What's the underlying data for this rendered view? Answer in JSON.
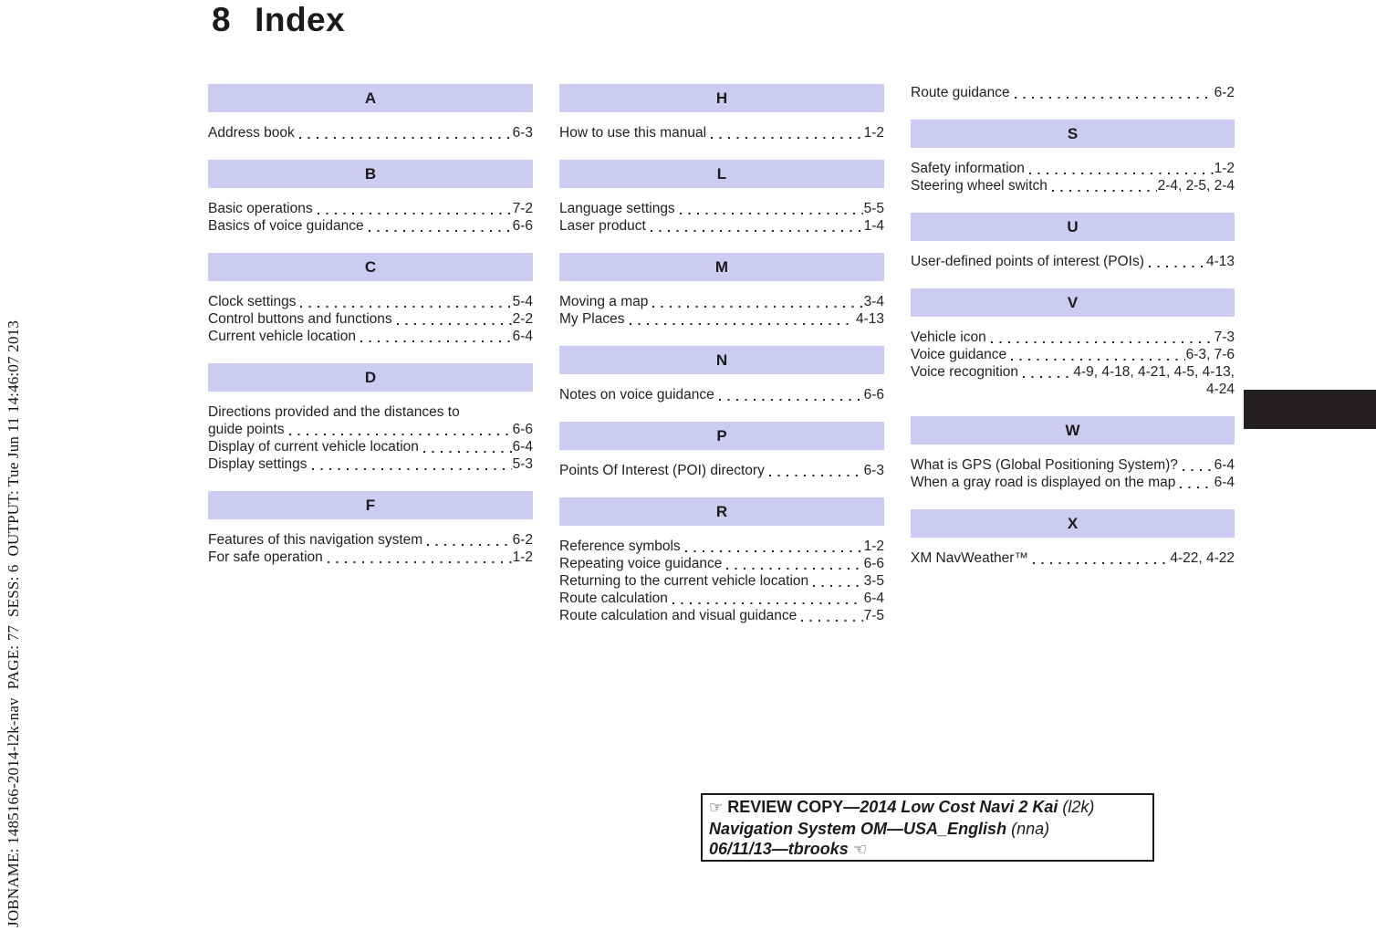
{
  "page": {
    "chapter_number": "8",
    "chapter_title": "Index",
    "job_line": "JOBNAME: 1485166-2014-l2k-nav  PAGE: 77  SESS: 6  OUTPUT: Tue Jun 11 14:46:07 2013"
  },
  "colors": {
    "section_header_bg": "#cccbf2",
    "text": "#231f20",
    "edge_tab": "#231f20"
  },
  "index": {
    "columns": [
      {
        "blocks": [
          {
            "letter": "A",
            "entries": [
              {
                "label": "Address book",
                "page": "6-3"
              }
            ]
          },
          {
            "letter": "B",
            "entries": [
              {
                "label": "Basic operations",
                "page": "7-2"
              },
              {
                "label": "Basics of voice guidance",
                "page": "6-6"
              }
            ]
          },
          {
            "letter": "C",
            "entries": [
              {
                "label": "Clock settings",
                "page": "5-4"
              },
              {
                "label": "Control buttons and functions",
                "page": "2-2"
              },
              {
                "label": "Current vehicle location",
                "page": "6-4"
              }
            ]
          },
          {
            "letter": "D",
            "entries": [
              {
                "label_pre": "Directions provided and the distances to",
                "label": "guide points",
                "page": "6-6"
              },
              {
                "label": "Display of current vehicle location",
                "page": "6-4"
              },
              {
                "label": "Display settings",
                "page": "5-3"
              }
            ]
          },
          {
            "letter": "F",
            "entries": [
              {
                "label": "Features of this navigation system",
                "page": "6-2"
              },
              {
                "label": "For safe operation",
                "page": "1-2"
              }
            ]
          }
        ]
      },
      {
        "blocks": [
          {
            "letter": "H",
            "entries": [
              {
                "label": "How to use this manual",
                "page": "1-2"
              }
            ]
          },
          {
            "letter": "L",
            "entries": [
              {
                "label": "Language settings",
                "page": "5-5"
              },
              {
                "label": "Laser product",
                "page": "1-4"
              }
            ]
          },
          {
            "letter": "M",
            "entries": [
              {
                "label": "Moving a map",
                "page": "3-4"
              },
              {
                "label": "My Places",
                "page": "4-13"
              }
            ]
          },
          {
            "letter": "N",
            "entries": [
              {
                "label": "Notes on voice guidance",
                "page": "6-6"
              }
            ]
          },
          {
            "letter": "P",
            "entries": [
              {
                "label": "Points Of Interest (POI) directory",
                "page": "6-3"
              }
            ]
          },
          {
            "letter": "R",
            "entries": [
              {
                "label": "Reference symbols",
                "page": "1-2"
              },
              {
                "label": "Repeating voice guidance",
                "page": "6-6"
              },
              {
                "label": "Returning to the current vehicle location",
                "page": "3-5"
              },
              {
                "label": "Route calculation",
                "page": "6-4"
              },
              {
                "label": "Route calculation and visual guidance",
                "page": "7-5"
              }
            ]
          }
        ]
      },
      {
        "blocks": [
          {
            "letter": null,
            "entries": [
              {
                "label": "Route guidance",
                "page": "6-2"
              }
            ]
          },
          {
            "letter": "S",
            "entries": [
              {
                "label": "Safety information",
                "page": "1-2"
              },
              {
                "label": "Steering wheel switch",
                "page": "2-4, 2-5, 2-4"
              }
            ]
          },
          {
            "letter": "U",
            "entries": [
              {
                "label": "User-defined points of interest (POIs)",
                "page": "4-13"
              }
            ]
          },
          {
            "letter": "V",
            "entries": [
              {
                "label": "Vehicle icon",
                "page": "7-3"
              },
              {
                "label": "Voice guidance",
                "page": "6-3, 7-6"
              },
              {
                "label": "Voice recognition",
                "page": "4-9, 4-18, 4-21, 4-5, 4-13,",
                "page_overflow": "4-24"
              }
            ]
          },
          {
            "letter": "W",
            "entries": [
              {
                "label": "What is GPS (Global Positioning System)?",
                "page": "6-4"
              },
              {
                "label": "When a gray road is displayed on the map",
                "page": "6-4"
              }
            ]
          },
          {
            "letter": "X",
            "entries": [
              {
                "label": "XM NavWeather™",
                "page": "4-22, 4-22"
              }
            ]
          }
        ]
      }
    ]
  },
  "review_box": {
    "hand_right_icon": "☞",
    "label": "REVIEW COPY—",
    "title": "2014 Low Cost Navi 2 Kai",
    "title_code": "(l2k)",
    "line2": "Navigation System OM—USA_English",
    "line2_code": "(nna)",
    "line3": "06/11/13—tbrooks",
    "hand_left_icon": "☜"
  }
}
